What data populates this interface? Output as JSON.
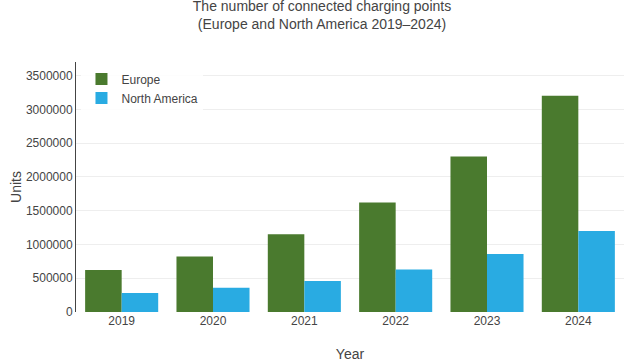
{
  "chart_data": {
    "type": "bar",
    "title": "The number of connected charging points",
    "subtitle": "(Europe and North America 2019–2024)",
    "x_label": "Year",
    "y_label": "Units",
    "categories": [
      "2019",
      "2020",
      "2021",
      "2022",
      "2023",
      "2024"
    ],
    "series": [
      {
        "name": "Europe",
        "color": "#4a7a2e",
        "values": [
          620000,
          820000,
          1150000,
          1620000,
          2300000,
          3200000
        ]
      },
      {
        "name": "North America",
        "color": "#29abe2",
        "values": [
          280000,
          360000,
          460000,
          630000,
          860000,
          1200000
        ]
      }
    ],
    "ylim": [
      0,
      3700000
    ],
    "yticks": [
      0,
      500000,
      1000000,
      1500000,
      2000000,
      2500000,
      3000000,
      3500000
    ],
    "grid": true,
    "legend": "upper left"
  }
}
